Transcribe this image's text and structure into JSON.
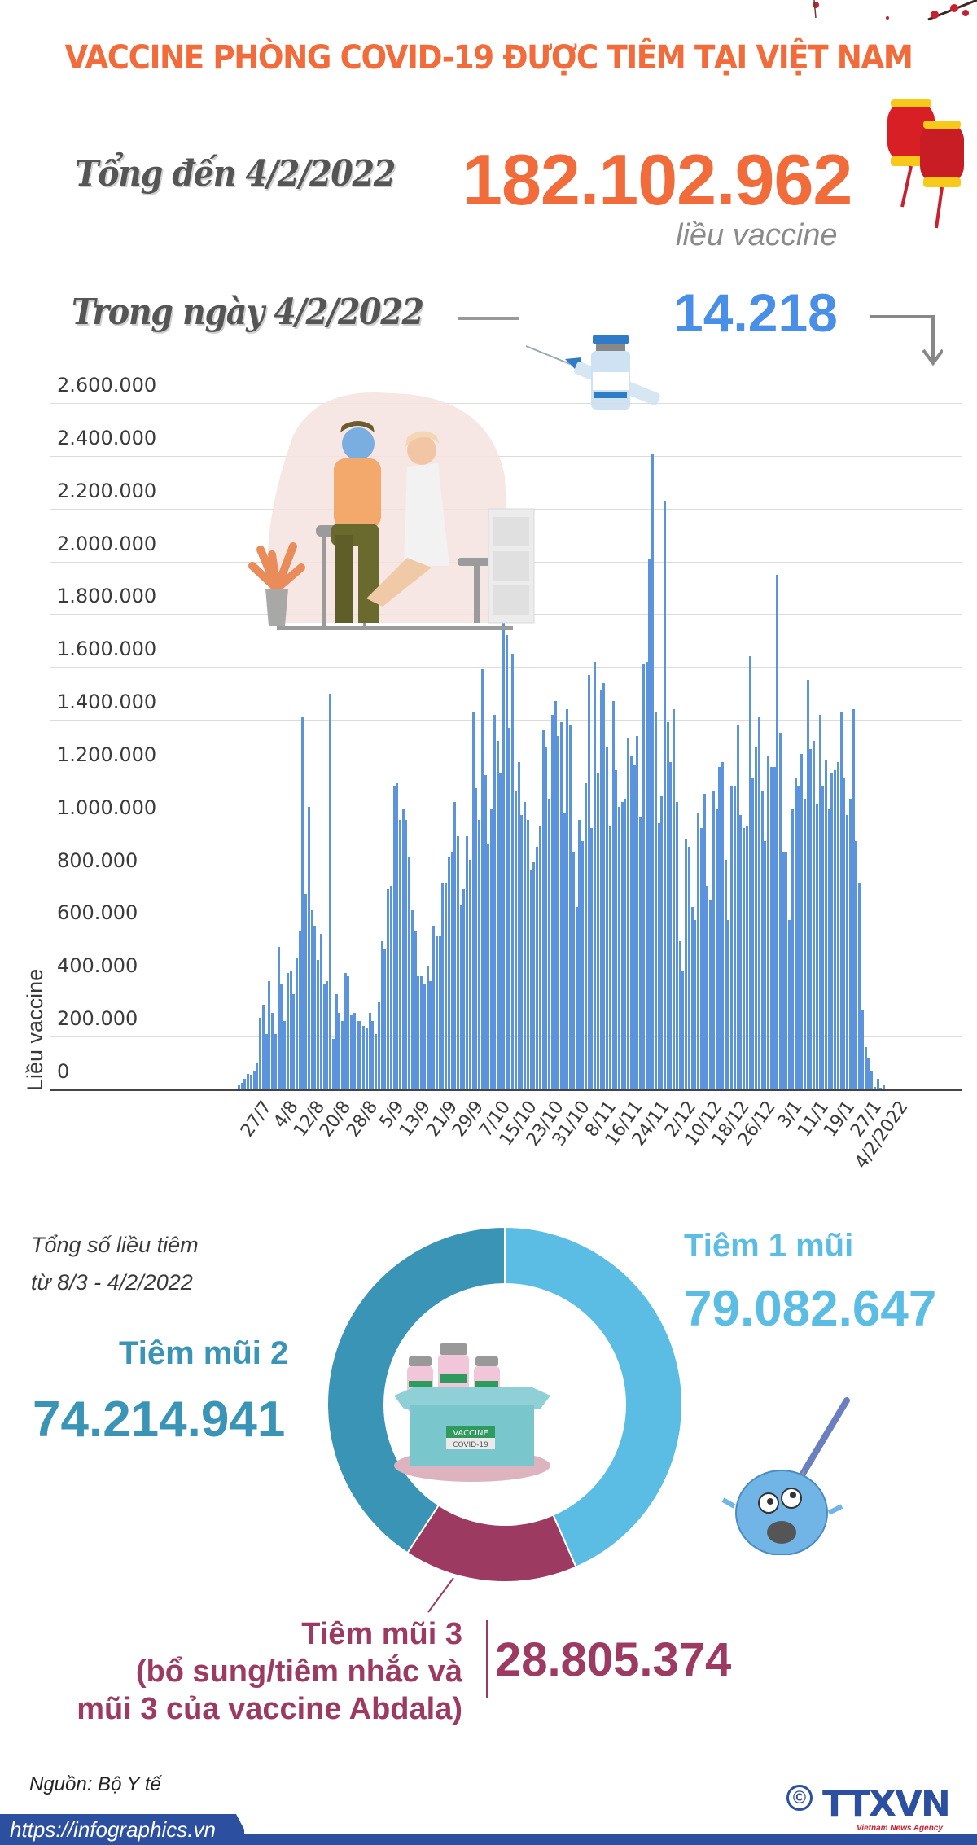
{
  "header": {
    "title": "VACCINE PHÒNG COVID-19 ĐƯỢC TIÊM TẠI VIỆT NAM"
  },
  "summary": {
    "total_label": "Tổng đến 4/2/2022",
    "total_value": "182.102.962",
    "total_unit": "liều vaccine",
    "day_label": "Trong ngày 4/2/2022",
    "day_value": "14.218"
  },
  "colors": {
    "accent_orange": "#f26b3a",
    "day_blue": "#4a8fe7",
    "bar_blue": "#5b94dd",
    "dose1": "#5bbde3",
    "dose2": "#3a94b6",
    "dose3": "#9c3a62",
    "footer_navy": "#2d4fa0"
  },
  "donut": {
    "caption_line1": "Tổng số liều tiêm",
    "caption_line2": "từ 8/3 - 4/2/2022",
    "dose1_label": "Tiêm 1 mũi",
    "dose1_value": "79.082.647",
    "dose2_label": "Tiêm mũi 2",
    "dose2_value": "74.214.941",
    "dose3_label_line1": "Tiêm mũi 3",
    "dose3_label_line2": "(bổ sung/tiêm nhắc và",
    "dose3_label_line3": "mũi 3 của vaccine Abdala)",
    "dose3_value": "28.805.374",
    "box_label_top": "VACCINE",
    "box_label_bottom": "COVID-19"
  },
  "footer": {
    "source": "Nguồn: Bộ Y tế",
    "url": "https://infographics.vn",
    "logo": "TTXVN",
    "logo_sub": "Vietnam News Agency",
    "copyright": "©"
  },
  "chart_data": [
    {
      "type": "bar",
      "title": "Số liều vaccine tiêm theo ngày",
      "xlabel": "",
      "ylabel": "Liều vaccine",
      "ylim": [
        0,
        2600000
      ],
      "yticks": [
        "0",
        "200.000",
        "400.000",
        "600.000",
        "800.000",
        "1.000.000",
        "1.200.000",
        "1.400.000",
        "1.600.000",
        "1.800.000",
        "2.000.000",
        "2.200.000",
        "2.400.000",
        "2.600.000"
      ],
      "xtick_labels": [
        "27/7",
        "4/8",
        "12/8",
        "20/8",
        "28/8",
        "5/9",
        "13/9",
        "21/9",
        "29/9",
        "7/10",
        "15/10",
        "23/10",
        "31/10",
        "8/11",
        "16/11",
        "24/11",
        "2/12",
        "10/12",
        "18/12",
        "26/12",
        "3/1",
        "11/1",
        "19/1",
        "27/1",
        "4/2/2022"
      ],
      "grid": true,
      "legend": null,
      "values": [
        20000,
        25000,
        40000,
        60000,
        55000,
        70000,
        100000,
        270000,
        320000,
        210000,
        410000,
        290000,
        210000,
        540000,
        400000,
        260000,
        440000,
        450000,
        360000,
        500000,
        600000,
        1410000,
        740000,
        1070000,
        680000,
        620000,
        490000,
        590000,
        400000,
        410000,
        1500000,
        190000,
        360000,
        290000,
        260000,
        440000,
        430000,
        280000,
        290000,
        260000,
        260000,
        240000,
        230000,
        290000,
        260000,
        210000,
        330000,
        560000,
        530000,
        760000,
        770000,
        1150000,
        1160000,
        1020000,
        1060000,
        1020000,
        880000,
        680000,
        600000,
        430000,
        430000,
        400000,
        470000,
        410000,
        620000,
        580000,
        580000,
        780000,
        780000,
        880000,
        900000,
        1090000,
        960000,
        700000,
        760000,
        960000,
        870000,
        1430000,
        1140000,
        1020000,
        1590000,
        1190000,
        930000,
        1060000,
        1420000,
        1320000,
        1200000,
        1980000,
        1720000,
        1370000,
        1650000,
        1130000,
        1240000,
        1040000,
        1090000,
        1020000,
        830000,
        860000,
        920000,
        1000000,
        1360000,
        1300000,
        1100000,
        1420000,
        1470000,
        1340000,
        1390000,
        1050000,
        1440000,
        1380000,
        900000,
        690000,
        1020000,
        940000,
        1160000,
        1570000,
        990000,
        1620000,
        1200000,
        1510000,
        1540000,
        1300000,
        1000000,
        1470000,
        1210000,
        1070000,
        1090000,
        1100000,
        1330000,
        1260000,
        1230000,
        1340000,
        1030000,
        1610000,
        1620000,
        2010000,
        2410000,
        1430000,
        1010000,
        1110000,
        2230000,
        1390000,
        1240000,
        1440000,
        1090000,
        560000,
        450000,
        950000,
        920000,
        690000,
        640000,
        1050000,
        990000,
        1120000,
        770000,
        720000,
        1130000,
        1060000,
        1220000,
        1240000,
        870000,
        640000,
        1150000,
        1150000,
        1380000,
        1040000,
        990000,
        1000000,
        1640000,
        1180000,
        1300000,
        1410000,
        1130000,
        940000,
        1260000,
        1220000,
        1220000,
        1950000,
        1350000,
        900000,
        900000,
        640000,
        1060000,
        1180000,
        1150000,
        1270000,
        1100000,
        1550000,
        1290000,
        1320000,
        1080000,
        1420000,
        1150000,
        1250000,
        1060000,
        1200000,
        1210000,
        1240000,
        1430000,
        1180000,
        1040000,
        1100000,
        1440000,
        940000,
        780000,
        300000,
        160000,
        120000,
        70000,
        10000,
        40000,
        5000,
        14218
      ]
    },
    {
      "type": "pie",
      "title": "Tổng số liều tiêm từ 8/3 - 4/2/2022",
      "categories": [
        "Tiêm 1 mũi",
        "Tiêm mũi 2",
        "Tiêm mũi 3 (bổ sung/tiêm nhắc và mũi 3 của vaccine Abdala)"
      ],
      "values": [
        79082647,
        74214941,
        28805374
      ],
      "colors": [
        "#5bbde3",
        "#3a94b6",
        "#9c3a62"
      ],
      "donut": true
    }
  ]
}
